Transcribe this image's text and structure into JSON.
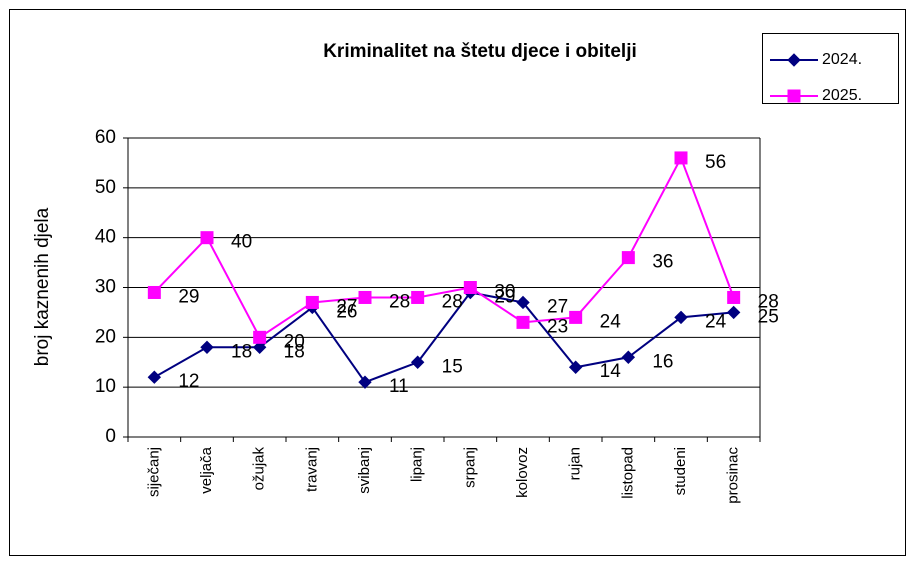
{
  "chart_data": {
    "type": "line",
    "title": "Kriminalitet na štetu djece i obitelji",
    "y_label": "broj kaznenih djela",
    "categories": [
      "siječanj",
      "veljača",
      "ožujak",
      "travanj",
      "svibanj",
      "lipanj",
      "srpanj",
      "kolovoz",
      "rujan",
      "listopad",
      "studeni",
      "prosinac"
    ],
    "series": [
      {
        "name": "2024.",
        "color": "#000080",
        "marker": "diamond",
        "values": [
          12,
          18,
          18,
          26,
          11,
          15,
          29,
          27,
          14,
          16,
          24,
          25
        ]
      },
      {
        "name": "2025.",
        "color": "#ff00ff",
        "marker": "square",
        "values": [
          29,
          40,
          20,
          27,
          28,
          28,
          30,
          23,
          24,
          36,
          56,
          28
        ]
      }
    ],
    "ylim": [
      0,
      60
    ],
    "yticks": [
      0,
      10,
      20,
      30,
      40,
      50,
      60
    ],
    "grid": true,
    "legend": "top-right"
  }
}
